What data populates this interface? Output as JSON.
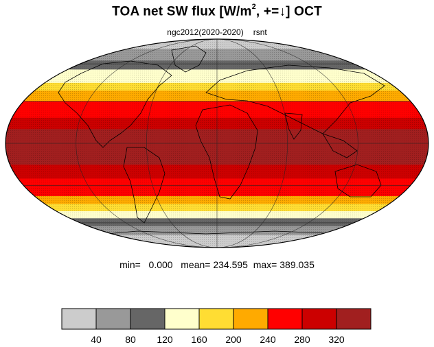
{
  "title": {
    "main": "TOA net SW flux [W/m",
    "sup": "2",
    "tail": ", +=↓]  OCT"
  },
  "subtitle": {
    "case": "ngc2012(2020-2020)",
    "var": "rsnt"
  },
  "stats": {
    "min_label": "min=",
    "min": "0.000",
    "mean_label": "mean=",
    "mean": "234.595",
    "max_label": "max=",
    "max": "389.035"
  },
  "colorbar": {
    "colors": [
      "#cccccc",
      "#999999",
      "#666666",
      "#ffffcc",
      "#ffdd33",
      "#ffaa00",
      "#ff0000",
      "#cc0000",
      "#a11f1f"
    ],
    "labels": [
      "40",
      "80",
      "120",
      "160",
      "200",
      "240",
      "280",
      "320"
    ]
  },
  "map": {
    "projection": "mollweide",
    "bands": [
      {
        "lat_from": 90,
        "lat_to": 75,
        "color": "#cccccc"
      },
      {
        "lat_from": 75,
        "lat_to": 63,
        "color": "#999999"
      },
      {
        "lat_from": 63,
        "lat_to": 55,
        "color": "#666666"
      },
      {
        "lat_from": 55,
        "lat_to": 44,
        "color": "#ffffcc"
      },
      {
        "lat_from": 44,
        "lat_to": 38,
        "color": "#ffdd33"
      },
      {
        "lat_from": 38,
        "lat_to": 30,
        "color": "#ffaa00"
      },
      {
        "lat_from": 30,
        "lat_to": 18,
        "color": "#ff0000"
      },
      {
        "lat_from": 18,
        "lat_to": 10,
        "color": "#cc0000"
      },
      {
        "lat_from": 10,
        "lat_to": -15,
        "color": "#a11f1f"
      },
      {
        "lat_from": -15,
        "lat_to": -25,
        "color": "#cc0000"
      },
      {
        "lat_from": -25,
        "lat_to": -38,
        "color": "#ff0000"
      },
      {
        "lat_from": -38,
        "lat_to": -44,
        "color": "#ffaa00"
      },
      {
        "lat_from": -44,
        "lat_to": -50,
        "color": "#ffdd33"
      },
      {
        "lat_from": -50,
        "lat_to": -56,
        "color": "#ffffcc"
      },
      {
        "lat_from": -56,
        "lat_to": -63,
        "color": "#666666"
      },
      {
        "lat_from": -63,
        "lat_to": -72,
        "color": "#999999"
      },
      {
        "lat_from": -72,
        "lat_to": -90,
        "color": "#cccccc"
      }
    ],
    "gridlines": {
      "parallels": [
        -60,
        -30,
        0,
        30,
        60
      ],
      "meridians": [
        -120,
        -60,
        0,
        60,
        120
      ]
    }
  }
}
